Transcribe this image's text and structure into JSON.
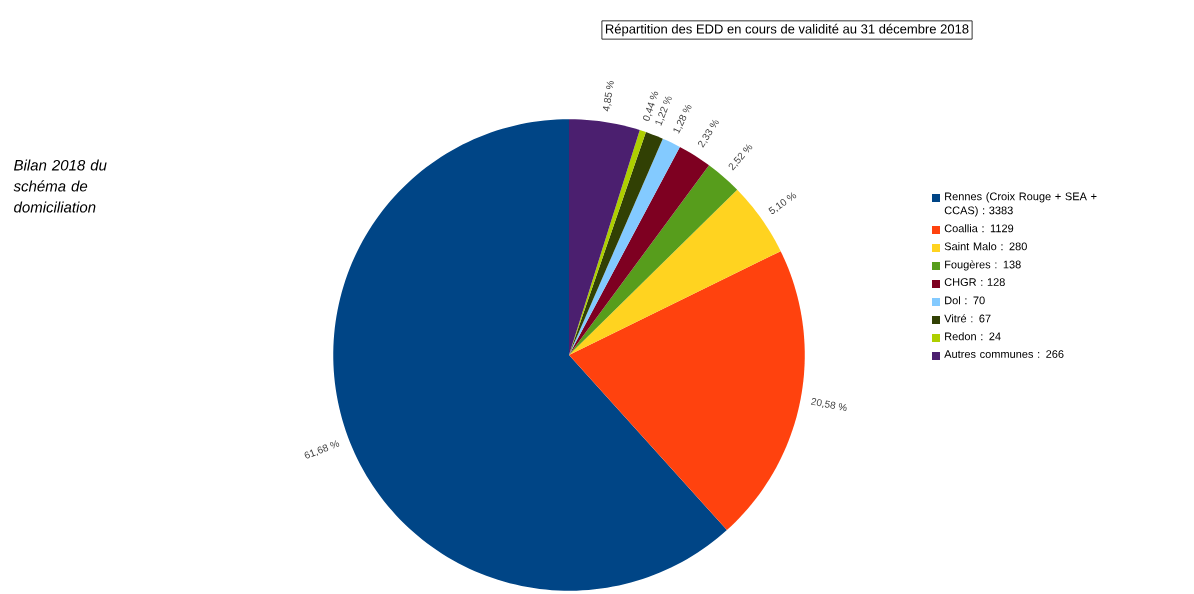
{
  "chart_data": {
    "type": "pie",
    "title": "Répartition des EDD en cours de validité au 31 décembre 2018",
    "categories": [
      "Rennes (Croix Rouge + SEA + CCAS) : 3383",
      "Coallia : 1129",
      "Saint Malo : 280",
      "Fougères : 138",
      "CHGR : 128",
      "Dol : 70",
      "Vitré : 67",
      "Redon : 24",
      "Autres communes : 266"
    ],
    "values": [
      61.68,
      20.58,
      5.1,
      2.52,
      2.33,
      1.28,
      1.22,
      0.44,
      4.85
    ],
    "colors": [
      "#004586",
      "#ff420e",
      "#ffd320",
      "#579d1c",
      "#7e0021",
      "#83caff",
      "#314004",
      "#aecf00",
      "#4b1f6f"
    ],
    "value_labels": [
      "61,68 %",
      "20,58 %",
      "5,10 %",
      "2,52 %",
      "2,33 %",
      "1,28 %",
      "1,22 %",
      "0,44 %",
      "4,85 %"
    ],
    "legend": "right",
    "annotations": [
      "Bilan 2018 du schéma de domiciliation"
    ]
  }
}
